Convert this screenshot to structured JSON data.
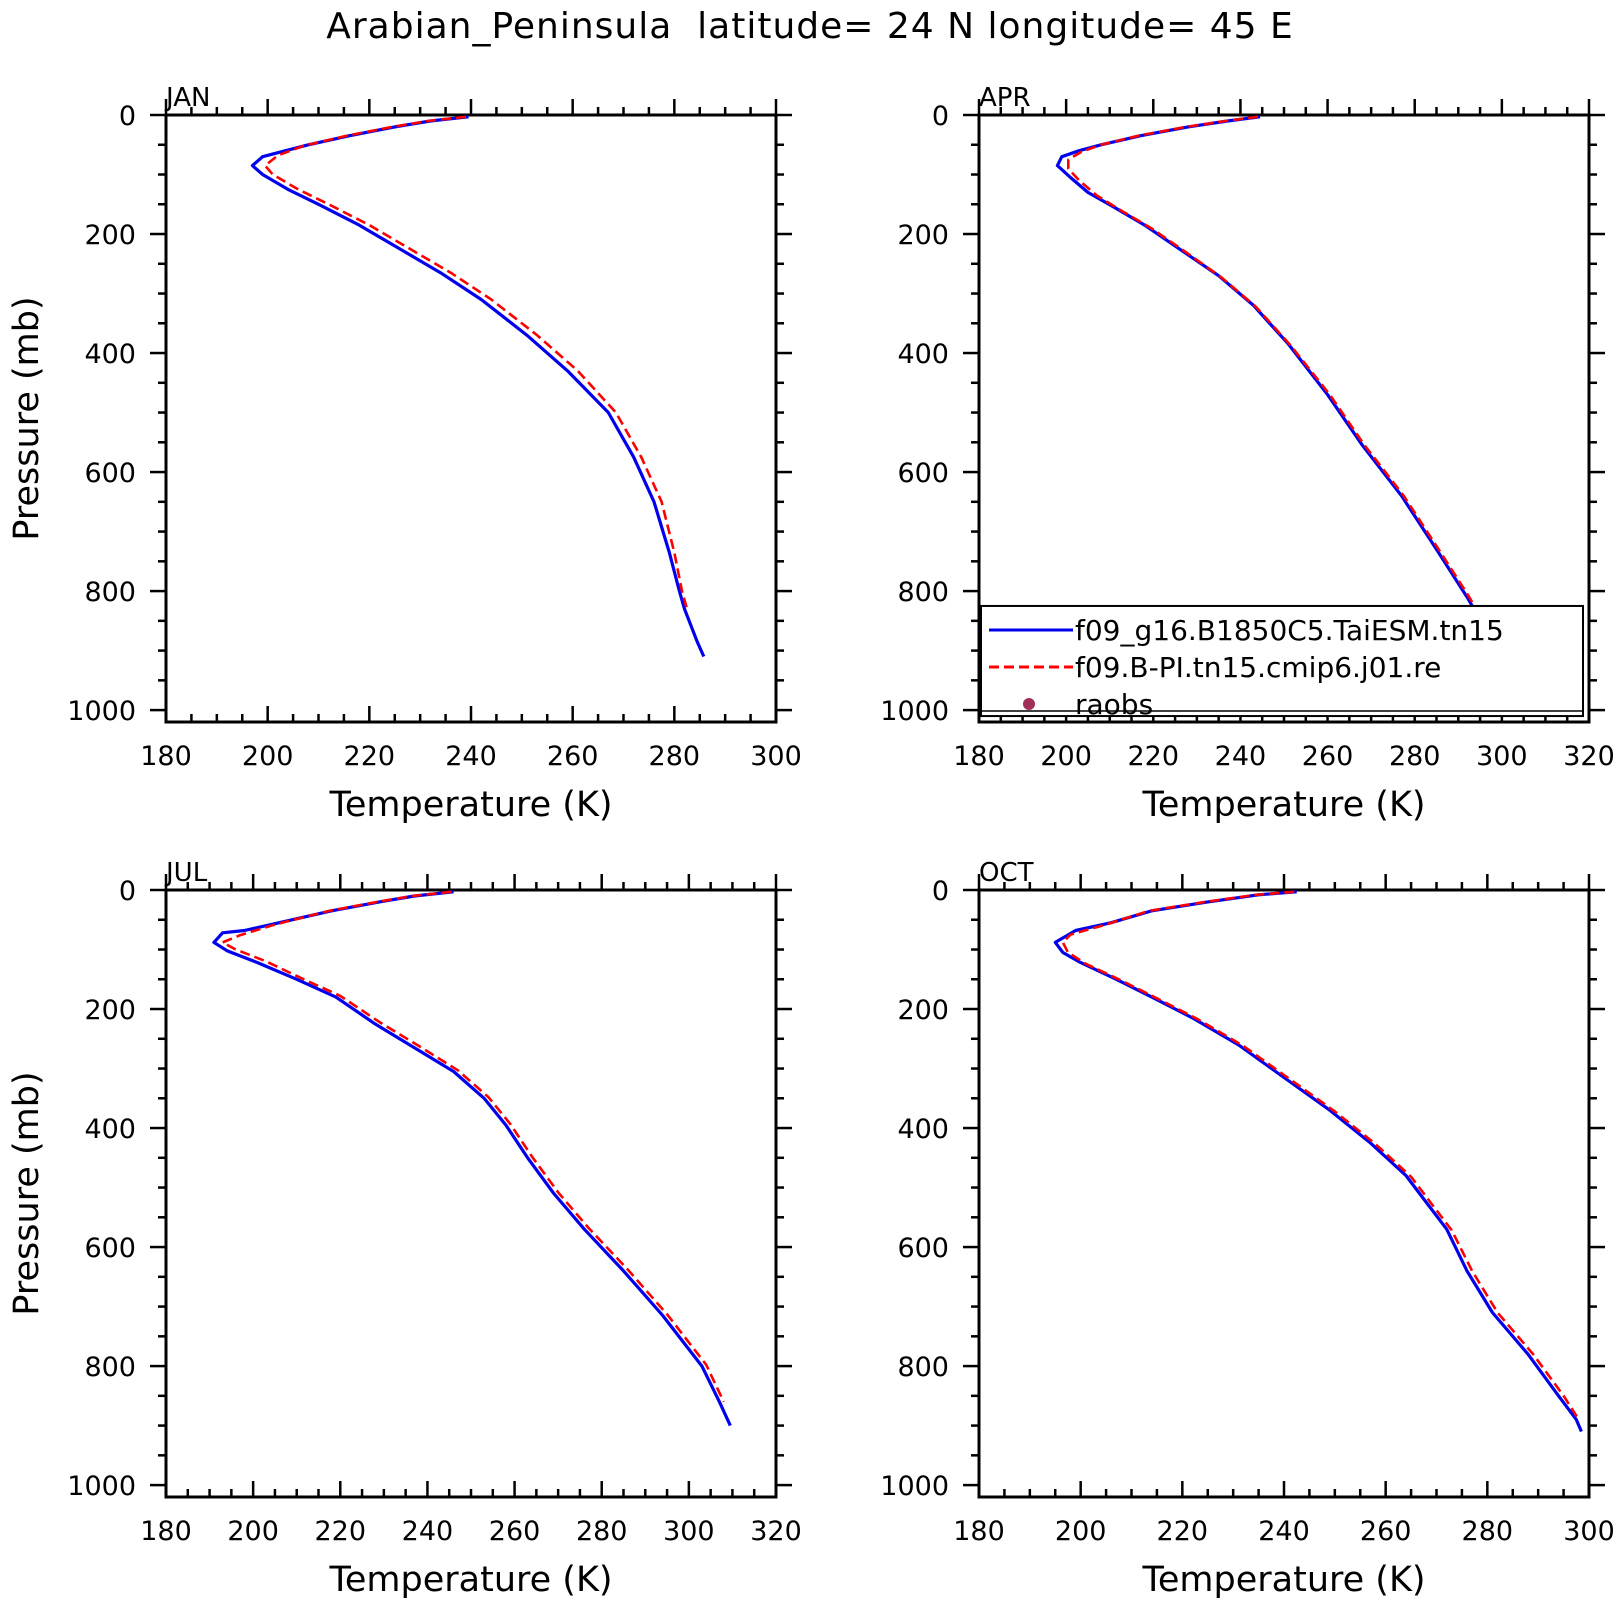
{
  "figure": {
    "title": "Arabian_Peninsula  latitude= 24 N longitude= 45 E"
  },
  "chart_data": [
    {
      "type": "line",
      "panel": "JAN",
      "xlabel": "Temperature (K)",
      "ylabel": "Pressure (mb)",
      "xlim": [
        180,
        300
      ],
      "ylim": [
        1020,
        0
      ],
      "xticks": [
        180,
        200,
        220,
        240,
        260,
        280,
        300
      ],
      "yticks": [
        0,
        200,
        400,
        600,
        800,
        1000
      ],
      "y_inverted": true,
      "legend": null,
      "series": [
        {
          "name": "f09_g16.B1850C5.TaiESM.tn15",
          "color": "#0000ee",
          "style": "solid",
          "points": [
            [
              239.5,
              3
            ],
            [
              232,
              10
            ],
            [
              225,
              20
            ],
            [
              216,
              35
            ],
            [
              208,
              50
            ],
            [
              203.5,
              60
            ],
            [
              199,
              70
            ],
            [
              197,
              85
            ],
            [
              199,
              100
            ],
            [
              204,
              125
            ],
            [
              210,
              150
            ],
            [
              218,
              185
            ],
            [
              226,
              225
            ],
            [
              234,
              265
            ],
            [
              242,
              310
            ],
            [
              251,
              370
            ],
            [
              259,
              430
            ],
            [
              267,
              500
            ],
            [
              272,
              575
            ],
            [
              276,
              650
            ],
            [
              279,
              735
            ],
            [
              281,
              800
            ],
            [
              282,
              830
            ],
            [
              284.5,
              885
            ],
            [
              285.8,
              910
            ]
          ]
        },
        {
          "name": "f09.B-PI.tn15.cmip6.j01.re",
          "color": "#ff0000",
          "style": "dashed",
          "points": [
            [
              239,
              3
            ],
            [
              231.5,
              10
            ],
            [
              224.5,
              20
            ],
            [
              215.5,
              35
            ],
            [
              207,
              52
            ],
            [
              202,
              68
            ],
            [
              199.5,
              85
            ],
            [
              201,
              100
            ],
            [
              206,
              125
            ],
            [
              212,
              150
            ],
            [
              220,
              185
            ],
            [
              228,
              225
            ],
            [
              236,
              265
            ],
            [
              244,
              310
            ],
            [
              253,
              370
            ],
            [
              261,
              430
            ],
            [
              268.5,
              500
            ],
            [
              273.5,
              575
            ],
            [
              277.5,
              650
            ],
            [
              280,
              735
            ],
            [
              281.5,
              800
            ],
            [
              282.5,
              830
            ]
          ]
        }
      ]
    },
    {
      "type": "line",
      "panel": "APR",
      "xlabel": "Temperature (K)",
      "ylabel": "",
      "xlim": [
        180,
        320
      ],
      "ylim": [
        1020,
        0
      ],
      "xticks": [
        180,
        200,
        220,
        240,
        260,
        280,
        300,
        320
      ],
      "yticks": [
        0,
        200,
        400,
        600,
        800,
        1000
      ],
      "y_inverted": true,
      "legend": {
        "placement": "lower-right",
        "entries": [
          {
            "label": "f09_g16.B1850C5.TaiESM.tn15",
            "color": "#0000ee",
            "style": "solid"
          },
          {
            "label": "f09.B-PI.tn15.cmip6.j01.re",
            "color": "#ff0000",
            "style": "dashed"
          },
          {
            "label": "raobs",
            "color": "#a0305a",
            "style": "dot"
          }
        ]
      },
      "series": [
        {
          "name": "f09_g16.B1850C5.TaiESM.tn15",
          "color": "#0000ee",
          "style": "solid",
          "points": [
            [
              244.5,
              3
            ],
            [
              237,
              10
            ],
            [
              228,
              20
            ],
            [
              217,
              35
            ],
            [
              208,
              50
            ],
            [
              203,
              60
            ],
            [
              199,
              70
            ],
            [
              198,
              85
            ],
            [
              201,
              105
            ],
            [
              205,
              130
            ],
            [
              211,
              155
            ],
            [
              218,
              185
            ],
            [
              226,
              225
            ],
            [
              235,
              270
            ],
            [
              243,
              320
            ],
            [
              251,
              385
            ],
            [
              260,
              470
            ],
            [
              268,
              555
            ],
            [
              277,
              640
            ],
            [
              285,
              730
            ],
            [
              292,
              810
            ],
            [
              296,
              860
            ],
            [
              300.5,
              905
            ]
          ]
        },
        {
          "name": "f09.B-PI.tn15.cmip6.j01.re",
          "color": "#ff0000",
          "style": "dashed",
          "points": [
            [
              244,
              3
            ],
            [
              236.5,
              10
            ],
            [
              227.5,
              20
            ],
            [
              216.5,
              35
            ],
            [
              208,
              50
            ],
            [
              203.5,
              62
            ],
            [
              200.5,
              75
            ],
            [
              200.5,
              90
            ],
            [
              203,
              110
            ],
            [
              207,
              135
            ],
            [
              212.5,
              160
            ],
            [
              219.5,
              190
            ],
            [
              227,
              228
            ],
            [
              235.5,
              272
            ],
            [
              243.5,
              322
            ],
            [
              251.5,
              387
            ],
            [
              260.5,
              470
            ],
            [
              268.5,
              555
            ],
            [
              277.5,
              640
            ],
            [
              285.5,
              730
            ],
            [
              292.5,
              810
            ],
            [
              296.5,
              860
            ],
            [
              301,
              905
            ]
          ]
        }
      ]
    },
    {
      "type": "line",
      "panel": "JUL",
      "xlabel": "Temperature (K)",
      "ylabel": "Pressure (mb)",
      "xlim": [
        180,
        320
      ],
      "ylim": [
        1020,
        0
      ],
      "xticks": [
        180,
        200,
        220,
        240,
        260,
        280,
        300,
        320
      ],
      "yticks": [
        0,
        200,
        400,
        600,
        800,
        1000
      ],
      "y_inverted": true,
      "legend": null,
      "series": [
        {
          "name": "f09_g16.B1850C5.TaiESM.tn15",
          "color": "#0000ee",
          "style": "solid",
          "points": [
            [
              246,
              3
            ],
            [
              237,
              10
            ],
            [
              229,
              20
            ],
            [
              218,
              35
            ],
            [
              206,
              55
            ],
            [
              198,
              68
            ],
            [
              193,
              72
            ],
            [
              191,
              88
            ],
            [
              194,
              102
            ],
            [
              201,
              122
            ],
            [
              210,
              150
            ],
            [
              219,
              180
            ],
            [
              228,
              225
            ],
            [
              237,
              265
            ],
            [
              246,
              305
            ],
            [
              253,
              350
            ],
            [
              258,
              395
            ],
            [
              263,
              450
            ],
            [
              269,
              510
            ],
            [
              276,
              570
            ],
            [
              285,
              640
            ],
            [
              294,
              715
            ],
            [
              303,
              800
            ],
            [
              307,
              860
            ],
            [
              309.5,
              900
            ]
          ]
        },
        {
          "name": "f09.B-PI.tn15.cmip6.j01.re",
          "color": "#ff0000",
          "style": "dashed",
          "points": [
            [
              245.5,
              3
            ],
            [
              236.5,
              10
            ],
            [
              228.5,
              20
            ],
            [
              217.5,
              35
            ],
            [
              205,
              58
            ],
            [
              197,
              76
            ],
            [
              193,
              88
            ],
            [
              196,
              100
            ],
            [
              203,
              120
            ],
            [
              211,
              148
            ],
            [
              220,
              178
            ],
            [
              229,
              222
            ],
            [
              238,
              262
            ],
            [
              247,
              303
            ],
            [
              254,
              348
            ],
            [
              259,
              393
            ],
            [
              264,
              448
            ],
            [
              270,
              508
            ],
            [
              277,
              568
            ],
            [
              286,
              638
            ],
            [
              295,
              713
            ],
            [
              304,
              798
            ],
            [
              308,
              860
            ]
          ]
        }
      ]
    },
    {
      "type": "line",
      "panel": "OCT",
      "xlabel": "Temperature (K)",
      "ylabel": "",
      "xlim": [
        180,
        300
      ],
      "ylim": [
        1020,
        0
      ],
      "xticks": [
        180,
        200,
        220,
        240,
        260,
        280,
        300
      ],
      "yticks": [
        0,
        200,
        400,
        600,
        800,
        1000
      ],
      "y_inverted": true,
      "legend": null,
      "series": [
        {
          "name": "f09_g16.B1850C5.TaiESM.tn15",
          "color": "#0000ee",
          "style": "solid",
          "points": [
            [
              242.5,
              3
            ],
            [
              235,
              8
            ],
            [
              225,
              20
            ],
            [
              214,
              35
            ],
            [
              206,
              55
            ],
            [
              199,
              68
            ],
            [
              195,
              88
            ],
            [
              196.5,
              105
            ],
            [
              200,
              122
            ],
            [
              207,
              150
            ],
            [
              214,
              180
            ],
            [
              222,
              215
            ],
            [
              231,
              260
            ],
            [
              240,
              315
            ],
            [
              249,
              370
            ],
            [
              257,
              425
            ],
            [
              264,
              480
            ],
            [
              268,
              525
            ],
            [
              272,
              570
            ],
            [
              276,
              640
            ],
            [
              281,
              710
            ],
            [
              288,
              780
            ],
            [
              294,
              850
            ],
            [
              297.5,
              890
            ],
            [
              298.5,
              910
            ]
          ]
        },
        {
          "name": "f09.B-PI.tn15.cmip6.j01.re",
          "color": "#ff0000",
          "style": "dashed",
          "points": [
            [
              242,
              3
            ],
            [
              234.5,
              8
            ],
            [
              224.5,
              20
            ],
            [
              213.5,
              35
            ],
            [
              205,
              58
            ],
            [
              198,
              75
            ],
            [
              196.5,
              88
            ],
            [
              197.5,
              105
            ],
            [
              201,
              124
            ],
            [
              208,
              152
            ],
            [
              215,
              182
            ],
            [
              223,
              217
            ],
            [
              232,
              262
            ],
            [
              241,
              317
            ],
            [
              250,
              372
            ],
            [
              258,
              427
            ],
            [
              265,
              482
            ],
            [
              269,
              527
            ],
            [
              273,
              572
            ],
            [
              277,
              640
            ],
            [
              282,
              710
            ],
            [
              289,
              780
            ],
            [
              295,
              850
            ],
            [
              298,
              890
            ]
          ]
        }
      ]
    }
  ]
}
